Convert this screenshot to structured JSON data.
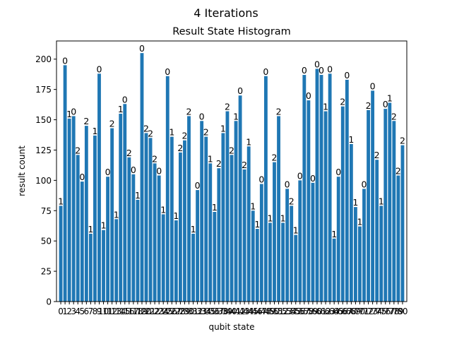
{
  "chart_data": {
    "type": "bar",
    "suptitle": "4 Iterations",
    "title": "Result State Histogram",
    "xlabel": "qubit state",
    "ylabel": "result count",
    "ylim": [
      0,
      215
    ],
    "yticks": [
      0,
      25,
      50,
      75,
      100,
      125,
      150,
      175,
      200
    ],
    "grid": false,
    "color": "#1f77b4",
    "categories": [
      "0",
      "1",
      "2",
      "3",
      "4",
      "5",
      "6",
      "7",
      "8",
      "9",
      "10",
      "11",
      "12",
      "13",
      "14",
      "15",
      "16",
      "17",
      "18",
      "19",
      "20",
      "21",
      "22",
      "23",
      "24",
      "25",
      "26",
      "27",
      "28",
      "29",
      "30",
      "31",
      "32",
      "33",
      "34",
      "35",
      "36",
      "37",
      "38",
      "39",
      "40",
      "41",
      "42",
      "43",
      "44",
      "45",
      "46",
      "47",
      "48",
      "49",
      "50",
      "51",
      "52",
      "53",
      "54",
      "55",
      "56",
      "57",
      "58",
      "59",
      "60",
      "61",
      "62",
      "63",
      "64",
      "65",
      "66",
      "67",
      "68",
      "69",
      "70",
      "71",
      "72",
      "73",
      "74",
      "75",
      "76",
      "77",
      "78",
      "79",
      "80"
    ],
    "values": [
      79,
      195,
      151,
      153,
      121,
      99,
      145,
      56,
      137,
      188,
      59,
      103,
      143,
      68,
      155,
      163,
      119,
      105,
      84,
      205,
      139,
      135,
      114,
      104,
      72,
      186,
      136,
      67,
      123,
      133,
      153,
      56,
      92,
      149,
      136,
      114,
      74,
      110,
      139,
      157,
      121,
      149,
      170,
      109,
      128,
      75,
      60,
      97,
      186,
      65,
      115,
      153,
      65,
      93,
      79,
      55,
      100,
      187,
      166,
      98,
      192,
      187,
      157,
      188,
      52,
      103,
      161,
      183,
      130,
      78,
      62,
      93,
      158,
      174,
      117,
      79,
      159,
      164,
      149,
      104,
      129
    ],
    "bar_labels": [
      "1",
      "0",
      "1",
      "0",
      "2",
      "0",
      "2",
      "1",
      "1",
      "0",
      "1",
      "0",
      "2",
      "1",
      "1",
      "0",
      "2",
      "0",
      "1",
      "0",
      "2",
      "2",
      "2",
      "0",
      "1",
      "0",
      "1",
      "1",
      "2",
      "2",
      "2",
      "1",
      "0",
      "0",
      "2",
      "1",
      "1",
      "2",
      "1",
      "2",
      "2",
      "1",
      "0",
      "2",
      "1",
      "1",
      "1",
      "0",
      "0",
      "1",
      "2",
      "2",
      "1",
      "0",
      "2",
      "1",
      "0",
      "0",
      "0",
      "0",
      "0",
      "0",
      "1",
      "0",
      "1",
      "0",
      "2",
      "0",
      "1",
      "1",
      "1",
      "0",
      "2",
      "0",
      "2",
      "1",
      "0",
      "1",
      "2",
      "2",
      "2"
    ]
  }
}
